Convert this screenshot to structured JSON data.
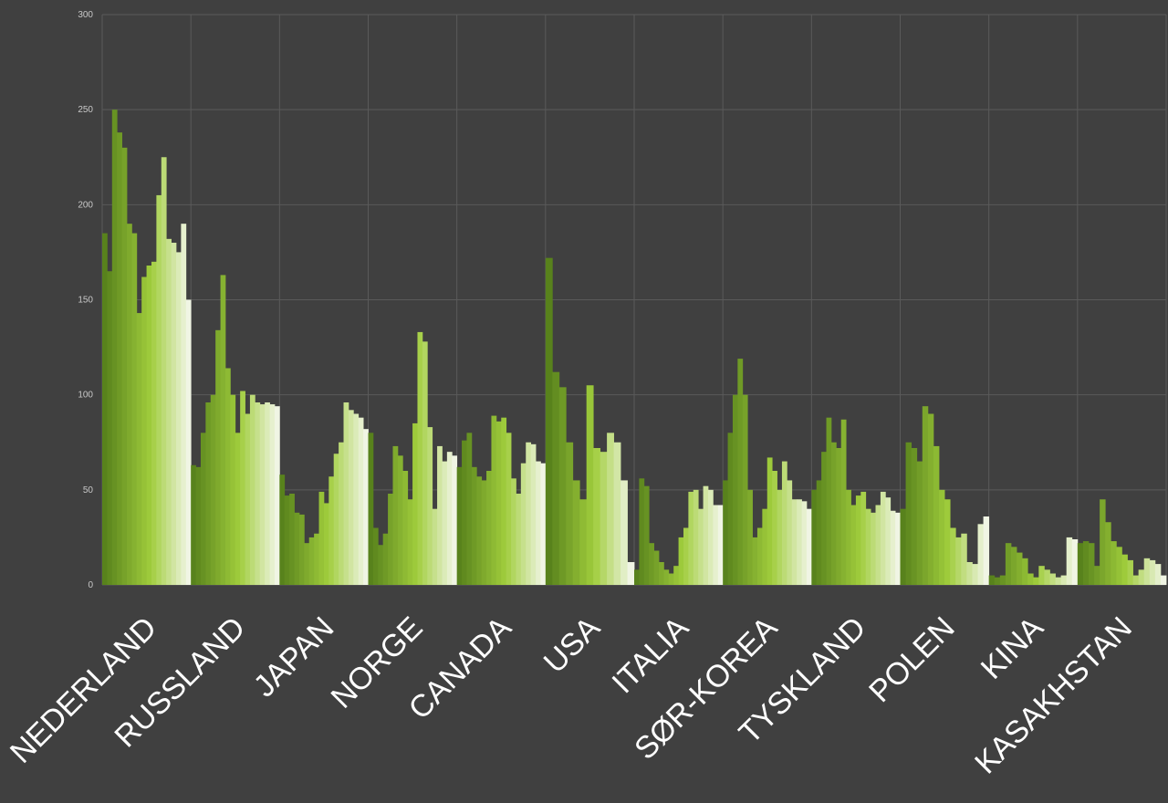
{
  "chart_data": {
    "type": "bar",
    "ylim": [
      0,
      300
    ],
    "yticks": [
      "0",
      "50",
      "100",
      "150",
      "200",
      "250",
      "300"
    ],
    "grid": true,
    "legend": "none",
    "colors": {
      "background": "#404040",
      "grid": "#5a5a5a",
      "bar_dark": "#5e8a1f",
      "bar_mid": "#9acd32",
      "bar_light": "#f1f5e6"
    },
    "categories": [
      "NEDERLAND",
      "RUSSLAND",
      "JAPAN",
      "NORGE",
      "CANADA",
      "USA",
      "ITALIA",
      "SØR-KOREA",
      "TYSKLAND",
      "POLEN",
      "KINA",
      "KASAKHSTAN"
    ],
    "values": [
      [
        185,
        165,
        250,
        238,
        230,
        190,
        185,
        143,
        162,
        168,
        170,
        205,
        225,
        182,
        180,
        175,
        190,
        150
      ],
      [
        63,
        62,
        80,
        96,
        100,
        134,
        163,
        114,
        100,
        80,
        102,
        90,
        100,
        96,
        95,
        96,
        95,
        94
      ],
      [
        58,
        47,
        48,
        38,
        37,
        22,
        25,
        27,
        49,
        43,
        57,
        69,
        75,
        96,
        92,
        90,
        88,
        82
      ],
      [
        80,
        30,
        21,
        27,
        48,
        73,
        68,
        60,
        45,
        85,
        133,
        128,
        83,
        40,
        73,
        65,
        70,
        68
      ],
      [
        62,
        76,
        80,
        62,
        57,
        55,
        60,
        89,
        86,
        88,
        80,
        56,
        48,
        64,
        75,
        74,
        65,
        64
      ],
      [
        172,
        112,
        104,
        75,
        55,
        45,
        105,
        72,
        70,
        80,
        75,
        55,
        12
      ],
      [
        8,
        56,
        52,
        22,
        18,
        12,
        8,
        6,
        10,
        25,
        30,
        49,
        50,
        40,
        52,
        50,
        42,
        42
      ],
      [
        55,
        80,
        100,
        119,
        100,
        50,
        25,
        30,
        40,
        67,
        60,
        50,
        65,
        55,
        45,
        45,
        44,
        40
      ],
      [
        50,
        55,
        70,
        88,
        75,
        72,
        87,
        50,
        42,
        47,
        49,
        40,
        38,
        42,
        49,
        46,
        39,
        38
      ],
      [
        40,
        75,
        72,
        65,
        94,
        90,
        73,
        50,
        45,
        30,
        25,
        27,
        12,
        11,
        32,
        36
      ],
      [
        5,
        4,
        5,
        22,
        20,
        17,
        14,
        6,
        4,
        10,
        8,
        6,
        4,
        5,
        25,
        24
      ],
      [
        22,
        23,
        22,
        10,
        45,
        33,
        23,
        20,
        16,
        13,
        5,
        8,
        14,
        13,
        11,
        5
      ]
    ]
  }
}
